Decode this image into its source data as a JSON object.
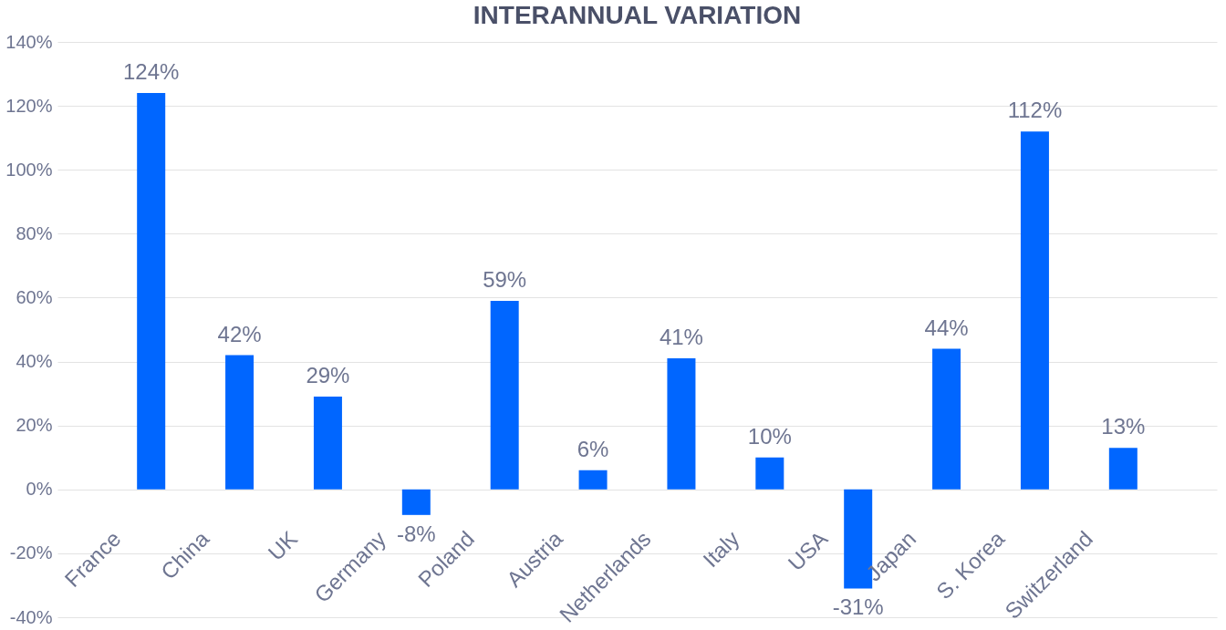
{
  "chart_data": {
    "type": "bar",
    "title": "INTERANNUAL VARIATION",
    "categories": [
      "France",
      "China",
      "UK",
      "Germany",
      "Poland",
      "Austria",
      "Netherlands",
      "Italy",
      "USA",
      "Japan",
      "S. Korea",
      "Switzerland"
    ],
    "series": [
      {
        "color": "#0066ff",
        "values": [
          124,
          42,
          29,
          -8,
          59,
          6,
          41,
          10,
          -31,
          44,
          112,
          13
        ],
        "value_labels": [
          "124%",
          "42%",
          "29%",
          "-8%",
          "59%",
          "6%",
          "41%",
          "10%",
          "-31%",
          "44%",
          "112%",
          "13%"
        ]
      }
    ],
    "ylim": [
      -40,
      140
    ],
    "yticks": [
      {
        "value": -40,
        "label": "-40%"
      },
      {
        "value": -20,
        "label": "-20%"
      },
      {
        "value": 0,
        "label": "0%"
      },
      {
        "value": 20,
        "label": "20%"
      },
      {
        "value": 40,
        "label": "40%"
      },
      {
        "value": 60,
        "label": "60%"
      },
      {
        "value": 80,
        "label": "80%"
      },
      {
        "value": 100,
        "label": "100%"
      },
      {
        "value": 120,
        "label": "120%"
      },
      {
        "value": 140,
        "label": "140%"
      }
    ],
    "grid": "y"
  }
}
